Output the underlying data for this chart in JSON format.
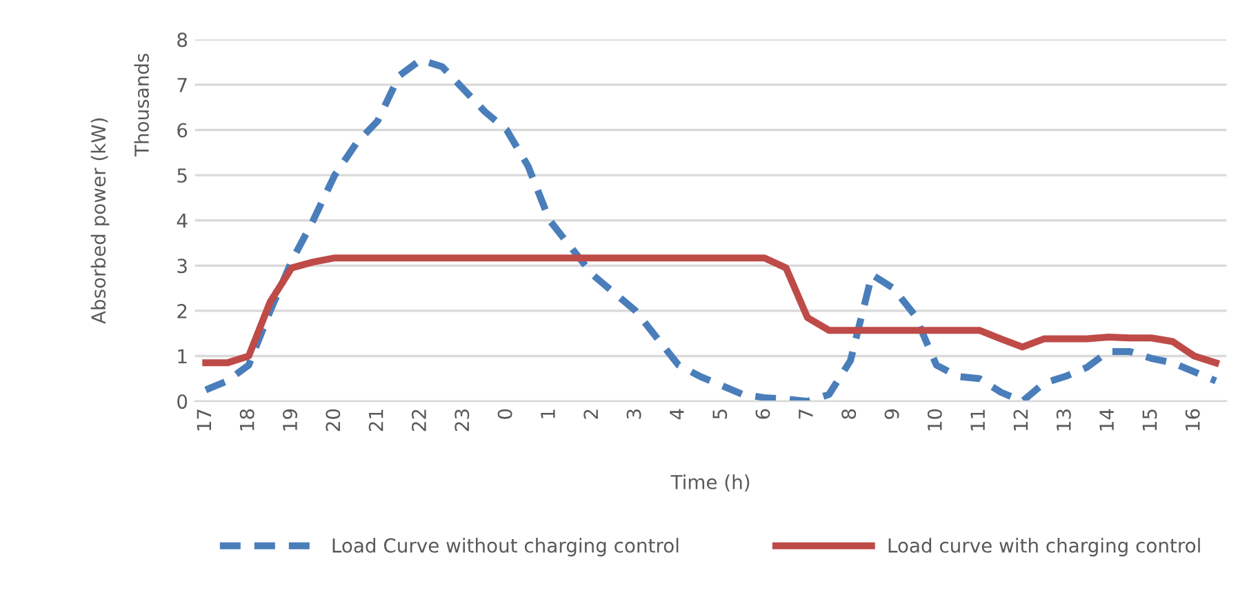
{
  "chart_data": {
    "type": "line",
    "xlabel": "Time (h)",
    "ylabel": "Absorbed power (kW)",
    "annotations": [
      "Thousands"
    ],
    "categories": [
      "17",
      null,
      "18",
      null,
      "19",
      null,
      "20",
      null,
      "21",
      null,
      "22",
      null,
      "23",
      null,
      "0",
      null,
      "1",
      null,
      "2",
      null,
      "3",
      null,
      "4",
      null,
      "5",
      null,
      "6",
      null,
      "7",
      null,
      "8",
      null,
      "9",
      null,
      "10",
      null,
      "11",
      null,
      "12",
      null,
      "13",
      null,
      "14",
      null,
      "15",
      null,
      "16",
      null
    ],
    "series": [
      {
        "name": "Load Curve without charging control",
        "color": "#4a7ebb",
        "line_style": "dashed",
        "values": [
          0.25,
          0.45,
          0.8,
          2.0,
          3.1,
          4.0,
          5.0,
          5.7,
          6.2,
          7.2,
          7.55,
          7.4,
          6.9,
          6.4,
          6.0,
          5.2,
          4.0,
          3.4,
          2.8,
          2.4,
          2.0,
          1.4,
          0.8,
          0.55,
          0.35,
          0.15,
          0.08,
          0.05,
          0.0,
          0.15,
          0.9,
          2.8,
          2.5,
          1.9,
          0.8,
          0.55,
          0.5,
          0.2,
          0.0,
          0.4,
          0.55,
          0.75,
          1.1,
          1.1,
          0.95,
          0.85,
          0.65,
          0.45
        ]
      },
      {
        "name": "Load curve with charging control",
        "color": "#be4b48",
        "line_style": "solid",
        "values": [
          0.85,
          0.85,
          1.0,
          2.2,
          2.95,
          3.08,
          3.17,
          3.17,
          3.17,
          3.17,
          3.17,
          3.17,
          3.17,
          3.17,
          3.17,
          3.17,
          3.17,
          3.17,
          3.17,
          3.17,
          3.17,
          3.17,
          3.17,
          3.17,
          3.17,
          3.17,
          3.17,
          2.95,
          1.85,
          1.57,
          1.57,
          1.57,
          1.57,
          1.57,
          1.57,
          1.57,
          1.57,
          1.38,
          1.2,
          1.38,
          1.38,
          1.38,
          1.42,
          1.4,
          1.4,
          1.32,
          1.0,
          0.85
        ]
      }
    ],
    "ylim": [
      0,
      8
    ],
    "yticks": [
      0,
      1,
      2,
      3,
      4,
      5,
      6,
      7,
      8
    ],
    "grid": "y",
    "legend": "bottom",
    "marker": "none"
  }
}
